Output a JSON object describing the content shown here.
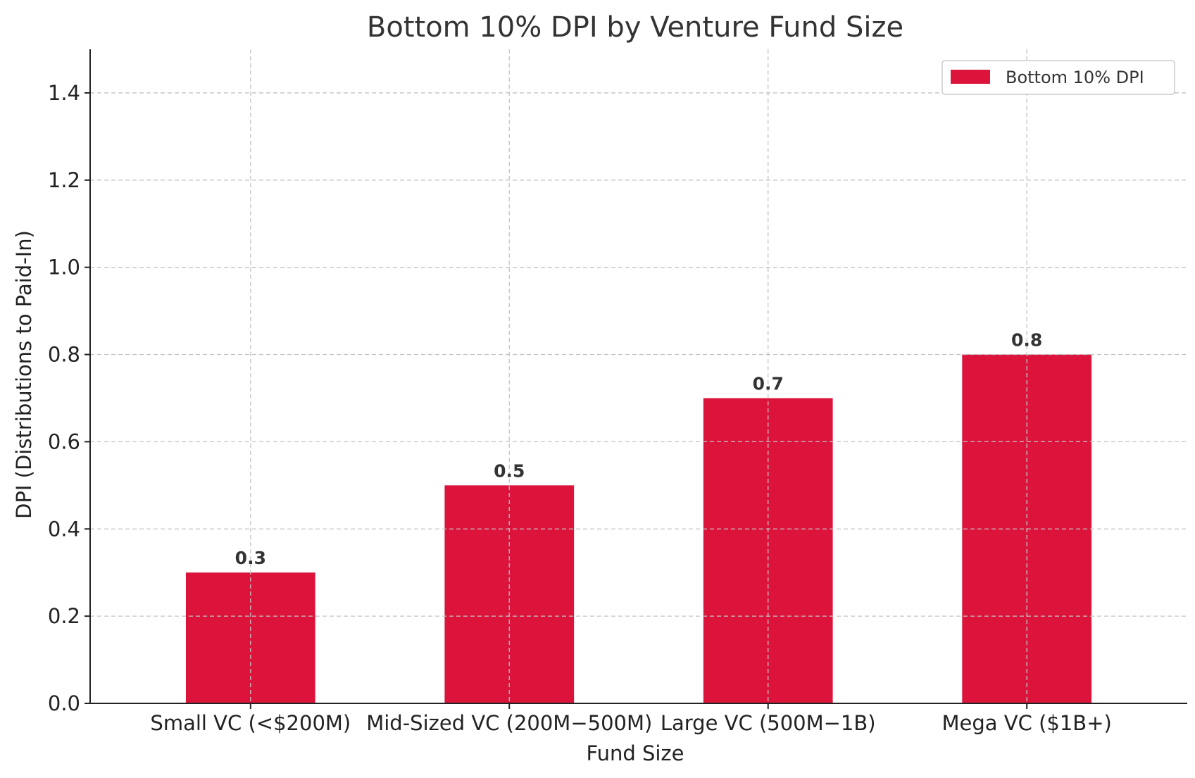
{
  "chart_data": {
    "type": "bar",
    "title": "Bottom 10% DPI by Venture Fund Size",
    "xlabel": "Fund Size",
    "ylabel": "DPI (Distributions to Paid-In)",
    "categories": [
      "Small VC (<$200M)",
      "Mid-Sized VC (200M−500M)",
      "Large VC (500M−1B)",
      "Mega VC ($1B+)"
    ],
    "series": [
      {
        "name": "Bottom 10% DPI",
        "values": [
          0.3,
          0.5,
          0.7,
          0.8
        ],
        "color": "#dc143c"
      }
    ],
    "data_labels": [
      "0.3",
      "0.5",
      "0.7",
      "0.8"
    ],
    "ylim": [
      0,
      1.5
    ],
    "yticks": [
      0.0,
      0.2,
      0.4,
      0.6,
      0.8,
      1.0,
      1.2,
      1.4
    ],
    "ytick_labels": [
      "0.0",
      "0.2",
      "0.4",
      "0.6",
      "0.8",
      "1.0",
      "1.2",
      "1.4"
    ],
    "grid": true,
    "legend": {
      "placement": "top-right",
      "label": "Bottom 10% DPI"
    }
  }
}
